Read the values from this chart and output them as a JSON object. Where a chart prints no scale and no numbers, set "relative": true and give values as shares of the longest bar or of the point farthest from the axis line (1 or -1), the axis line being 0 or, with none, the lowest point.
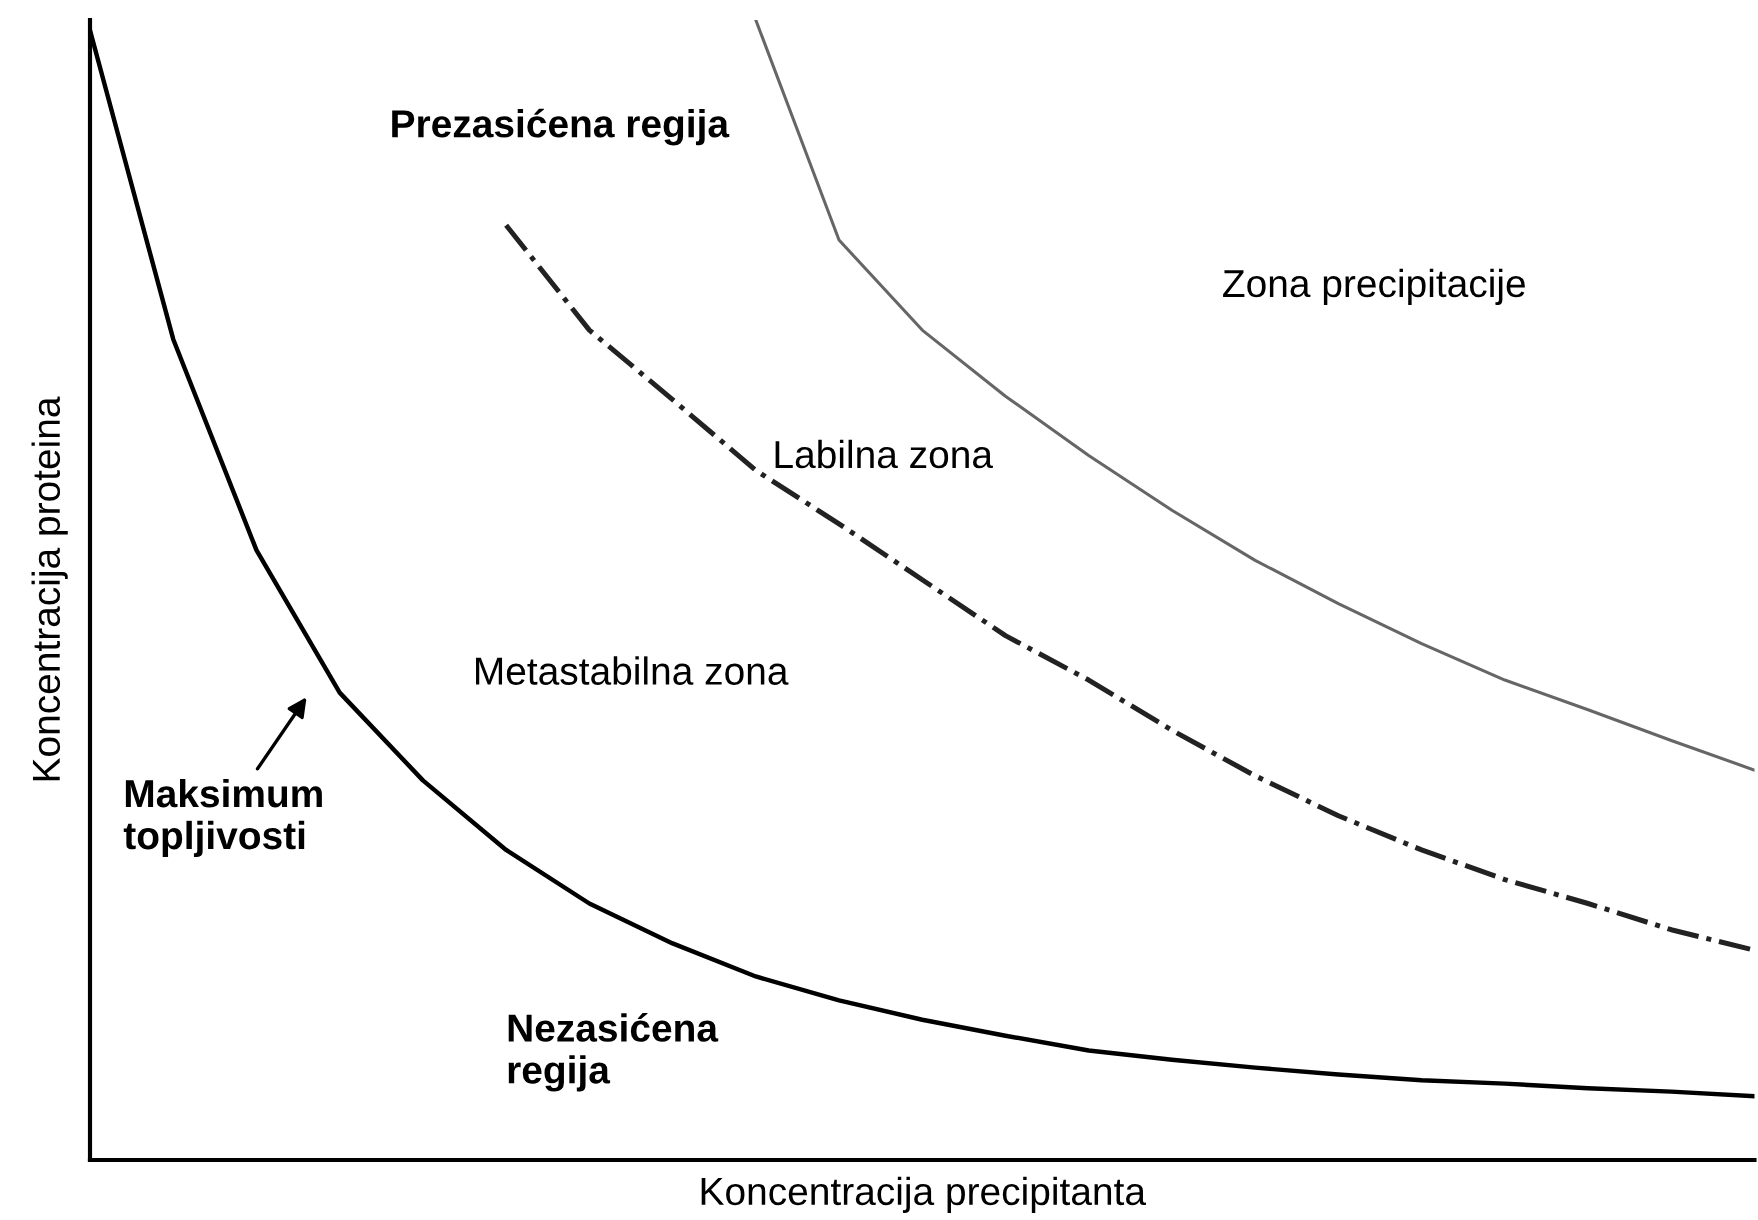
{
  "chart_data": {
    "type": "line",
    "relative": true,
    "xlabel": "Koncentracija precipitanta",
    "ylabel": "Koncentracija proteina",
    "tick_labels": false,
    "grid": false,
    "legend": false,
    "marker": "none",
    "categories": [
      null,
      null,
      null,
      null,
      null,
      null,
      null,
      null,
      null,
      null,
      null,
      null,
      null,
      null,
      null,
      null,
      null,
      null,
      null,
      null,
      null
    ],
    "series": [
      {
        "color": "#000000",
        "line_style": "solid",
        "values": [
          0.991,
          0.72,
          0.535,
          0.41,
          0.333,
          0.272,
          0.225,
          0.19,
          0.161,
          0.14,
          0.123,
          0.109,
          0.096,
          0.088,
          0.081,
          0.075,
          0.07,
          0.067,
          0.063,
          0.06,
          0.056
        ]
      },
      {
        "color": "#222222",
        "line_style": "dashdot",
        "values": [
          null,
          null,
          null,
          null,
          null,
          0.82,
          0.728,
          0.667,
          0.605,
          0.558,
          0.509,
          0.46,
          0.421,
          0.377,
          0.337,
          0.302,
          0.272,
          0.246,
          0.225,
          0.202,
          0.184
        ]
      },
      {
        "color": "#666666",
        "line_style": "solid",
        "values": [
          null,
          null,
          null,
          null,
          null,
          null,
          null,
          null,
          1.0,
          0.807,
          0.728,
          0.67,
          0.618,
          0.57,
          0.526,
          0.488,
          0.453,
          0.421,
          0.395,
          0.368,
          0.342
        ]
      }
    ],
    "annotations": [
      "Prezasićena regija",
      "Zona precipitacije",
      "Labilna zona",
      "Metastabilna zona",
      "Nezasićena\nregija",
      "Maksimum\ntopljivosti"
    ]
  }
}
